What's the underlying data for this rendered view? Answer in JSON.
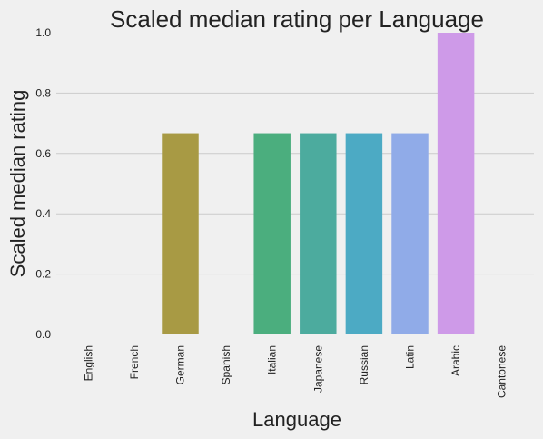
{
  "chart_data": {
    "type": "bar",
    "title": "Scaled median rating per Language",
    "xlabel": "Language",
    "ylabel": "Scaled median rating",
    "categories": [
      "English",
      "French",
      "German",
      "Spanish",
      "Italian",
      "Japanese",
      "Russian",
      "Latin",
      "Arabic",
      "Cantonese"
    ],
    "values": [
      0.0,
      0.0,
      0.667,
      0.0,
      0.667,
      0.667,
      0.667,
      0.667,
      1.0,
      0.0
    ],
    "colors": [
      "#e8747c",
      "#d48640",
      "#a89a44",
      "#84a845",
      "#4bae7e",
      "#4cab9e",
      "#4caac4",
      "#90abe8",
      "#ce9ae8",
      "#e88ac4"
    ],
    "ylim": [
      0,
      1.0
    ],
    "yticks": [
      "0.0",
      "0.2",
      "0.4",
      "0.6",
      "0.8",
      "1.0"
    ],
    "grid": true,
    "legend": "none",
    "background": "#f0f0f0",
    "grid_color": "#cbcbcb"
  }
}
